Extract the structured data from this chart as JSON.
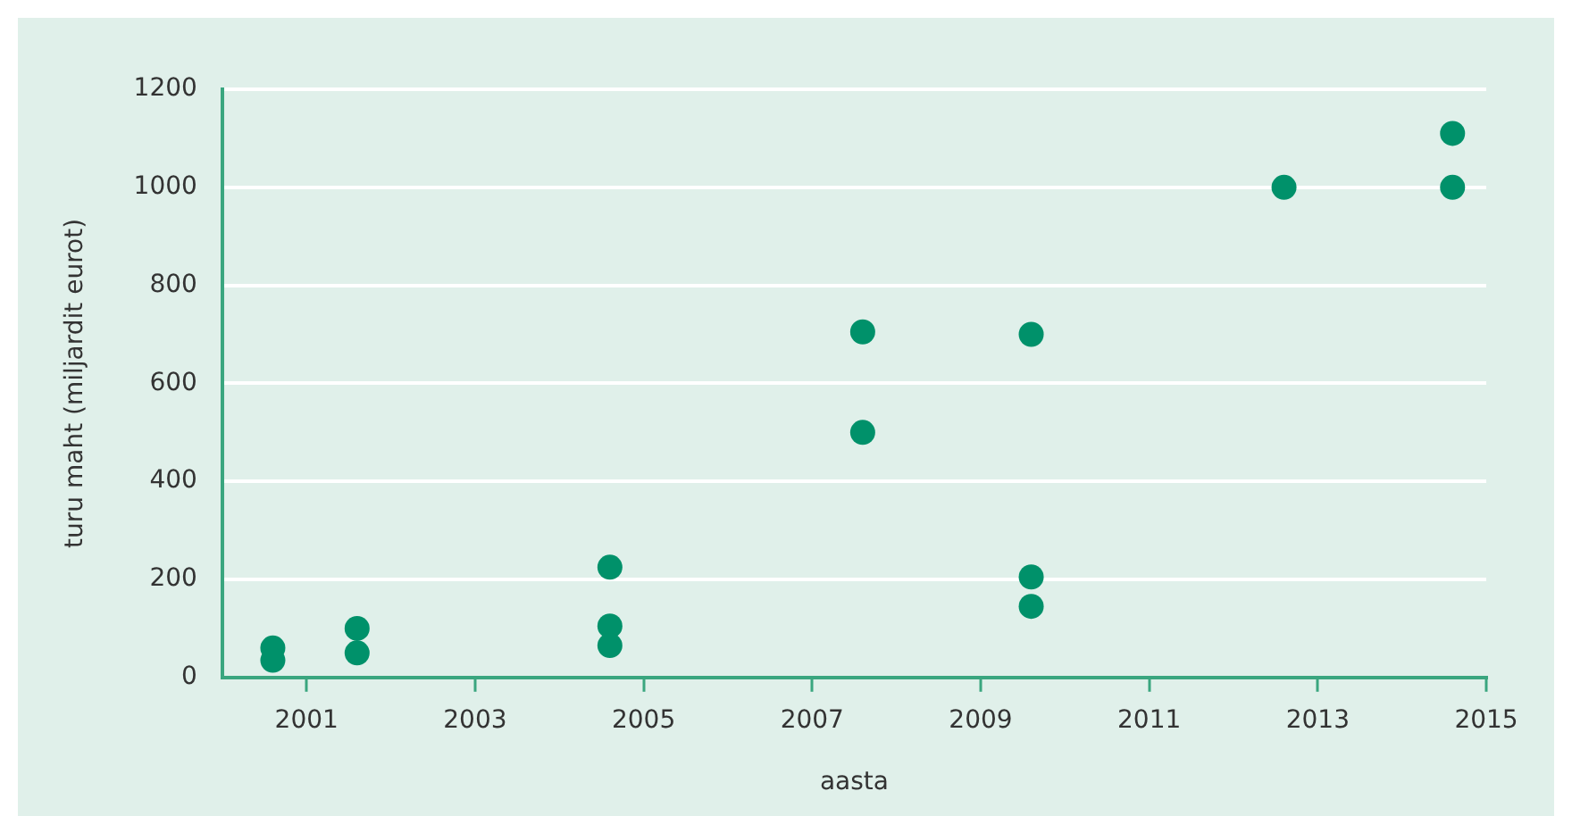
{
  "chart_data": {
    "type": "scatter",
    "xlabel": "aasta",
    "ylabel": "turu maht (miljardit eurot)",
    "xlim": [
      2000,
      2015
    ],
    "xticks": [
      2001,
      2003,
      2005,
      2007,
      2009,
      2011,
      2013,
      2015
    ],
    "ylim": [
      0,
      1200
    ],
    "yticks": [
      0,
      200,
      400,
      600,
      800,
      1000,
      1200
    ],
    "grid": "y",
    "legend": false,
    "marker": "circle",
    "series": [
      {
        "color": "#00916a",
        "x": [
          2000.6,
          2000.6,
          2001.6,
          2001.6,
          2004.6,
          2004.6,
          2004.6,
          2007.6,
          2007.6,
          2009.6,
          2009.6,
          2009.6,
          2012.6,
          2014.6,
          2014.6
        ],
        "values": [
          60,
          35,
          100,
          50,
          225,
          105,
          65,
          705,
          500,
          700,
          205,
          145,
          1000,
          1110,
          1000
        ]
      }
    ]
  }
}
